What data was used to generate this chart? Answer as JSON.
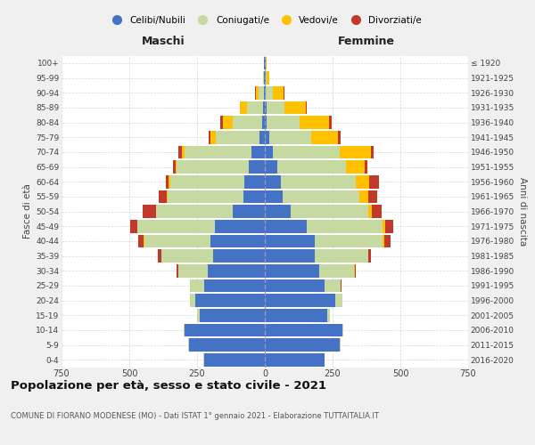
{
  "age_groups": [
    "0-4",
    "5-9",
    "10-14",
    "15-19",
    "20-24",
    "25-29",
    "30-34",
    "35-39",
    "40-44",
    "45-49",
    "50-54",
    "55-59",
    "60-64",
    "65-69",
    "70-74",
    "75-79",
    "80-84",
    "85-89",
    "90-94",
    "95-99",
    "100+"
  ],
  "birth_years": [
    "2016-2020",
    "2011-2015",
    "2006-2010",
    "2001-2005",
    "1996-2000",
    "1991-1995",
    "1986-1990",
    "1981-1985",
    "1976-1980",
    "1971-1975",
    "1966-1970",
    "1961-1965",
    "1956-1960",
    "1951-1955",
    "1946-1950",
    "1941-1945",
    "1936-1940",
    "1931-1935",
    "1926-1930",
    "1921-1925",
    "≤ 1920"
  ],
  "males": {
    "celibi": [
      225,
      280,
      295,
      240,
      255,
      225,
      210,
      190,
      200,
      185,
      120,
      80,
      75,
      60,
      50,
      20,
      10,
      6,
      4,
      2,
      2
    ],
    "coniugati": [
      2,
      3,
      5,
      10,
      20,
      50,
      110,
      190,
      245,
      285,
      280,
      280,
      275,
      265,
      245,
      160,
      110,
      60,
      20,
      4,
      2
    ],
    "vedovi": [
      0,
      0,
      0,
      0,
      0,
      0,
      0,
      0,
      1,
      1,
      2,
      3,
      4,
      5,
      10,
      20,
      35,
      25,
      10,
      2,
      0
    ],
    "divorziati": [
      0,
      0,
      0,
      1,
      1,
      2,
      5,
      15,
      20,
      25,
      50,
      30,
      10,
      10,
      15,
      8,
      8,
      2,
      1,
      0,
      0
    ]
  },
  "females": {
    "nubili": [
      220,
      275,
      285,
      230,
      260,
      220,
      200,
      185,
      185,
      155,
      95,
      65,
      60,
      45,
      30,
      15,
      8,
      6,
      4,
      2,
      2
    ],
    "coniugate": [
      2,
      3,
      5,
      10,
      25,
      60,
      130,
      195,
      250,
      280,
      285,
      285,
      275,
      255,
      245,
      155,
      120,
      65,
      25,
      5,
      2
    ],
    "vedove": [
      0,
      0,
      0,
      0,
      0,
      1,
      2,
      3,
      5,
      10,
      15,
      30,
      50,
      70,
      115,
      100,
      110,
      80,
      40,
      10,
      3
    ],
    "divorziate": [
      0,
      0,
      0,
      0,
      1,
      2,
      5,
      10,
      25,
      30,
      35,
      35,
      35,
      8,
      10,
      10,
      10,
      5,
      2,
      1,
      0
    ]
  },
  "colors": {
    "celibi": "#4472c4",
    "coniugati": "#c5d9a0",
    "vedovi": "#ffc000",
    "divorziati": "#c0392b"
  },
  "legend_labels": [
    "Celibi/Nubili",
    "Coniugati/e",
    "Vedovi/e",
    "Divorziati/e"
  ],
  "xlim": 750,
  "xticks": [
    750,
    500,
    250,
    0,
    250,
    500,
    750
  ],
  "title": "Popolazione per età, sesso e stato civile - 2021",
  "subtitle": "COMUNE DI FIORANO MODENESE (MO) - Dati ISTAT 1° gennaio 2021 - Elaborazione TUTTAITALIA.IT",
  "xlabel_left": "Maschi",
  "xlabel_right": "Femmine",
  "ylabel_left": "Fasce di età",
  "ylabel_right": "Anni di nascita",
  "bg_color": "#f0f0f0",
  "plot_bg_color": "#ffffff"
}
